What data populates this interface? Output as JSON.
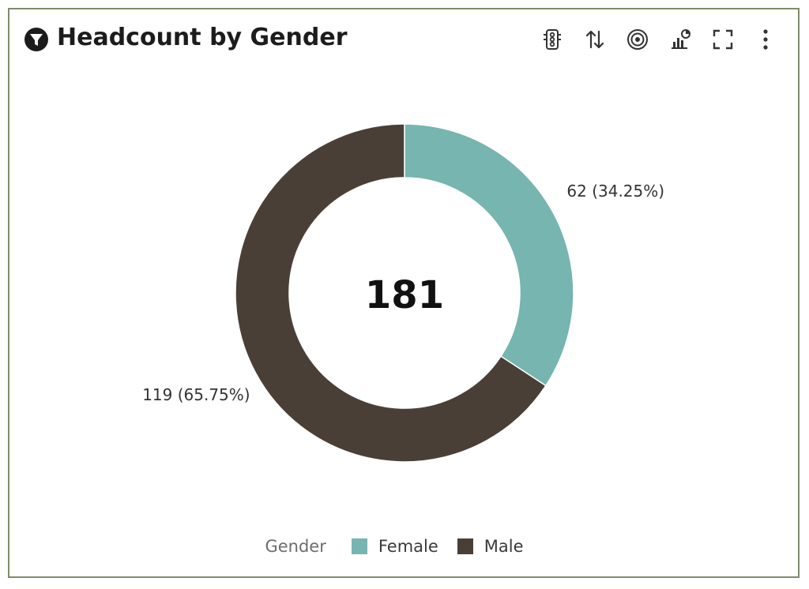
{
  "card": {
    "title": "Headcount by Gender"
  },
  "toolbar": {
    "items": [
      {
        "name": "traffic-light-icon"
      },
      {
        "name": "sort-icon"
      },
      {
        "name": "target-icon"
      },
      {
        "name": "chart-options-icon"
      },
      {
        "name": "fullscreen-icon"
      },
      {
        "name": "more-vertical-icon"
      }
    ]
  },
  "colors": {
    "female": "#76b5b0",
    "male": "#4a3f37",
    "border": "#7d8c6a"
  },
  "chart_data": {
    "type": "pie",
    "donut": true,
    "center_label": "181",
    "legend_title": "Gender",
    "legend_position": "bottom",
    "slices": [
      {
        "name": "Female",
        "value": 62,
        "percent": 34.25,
        "label": "62 (34.25%)",
        "color": "#76b5b0"
      },
      {
        "name": "Male",
        "value": 119,
        "percent": 65.75,
        "label": "119 (65.75%)",
        "color": "#4a3f37"
      }
    ]
  }
}
